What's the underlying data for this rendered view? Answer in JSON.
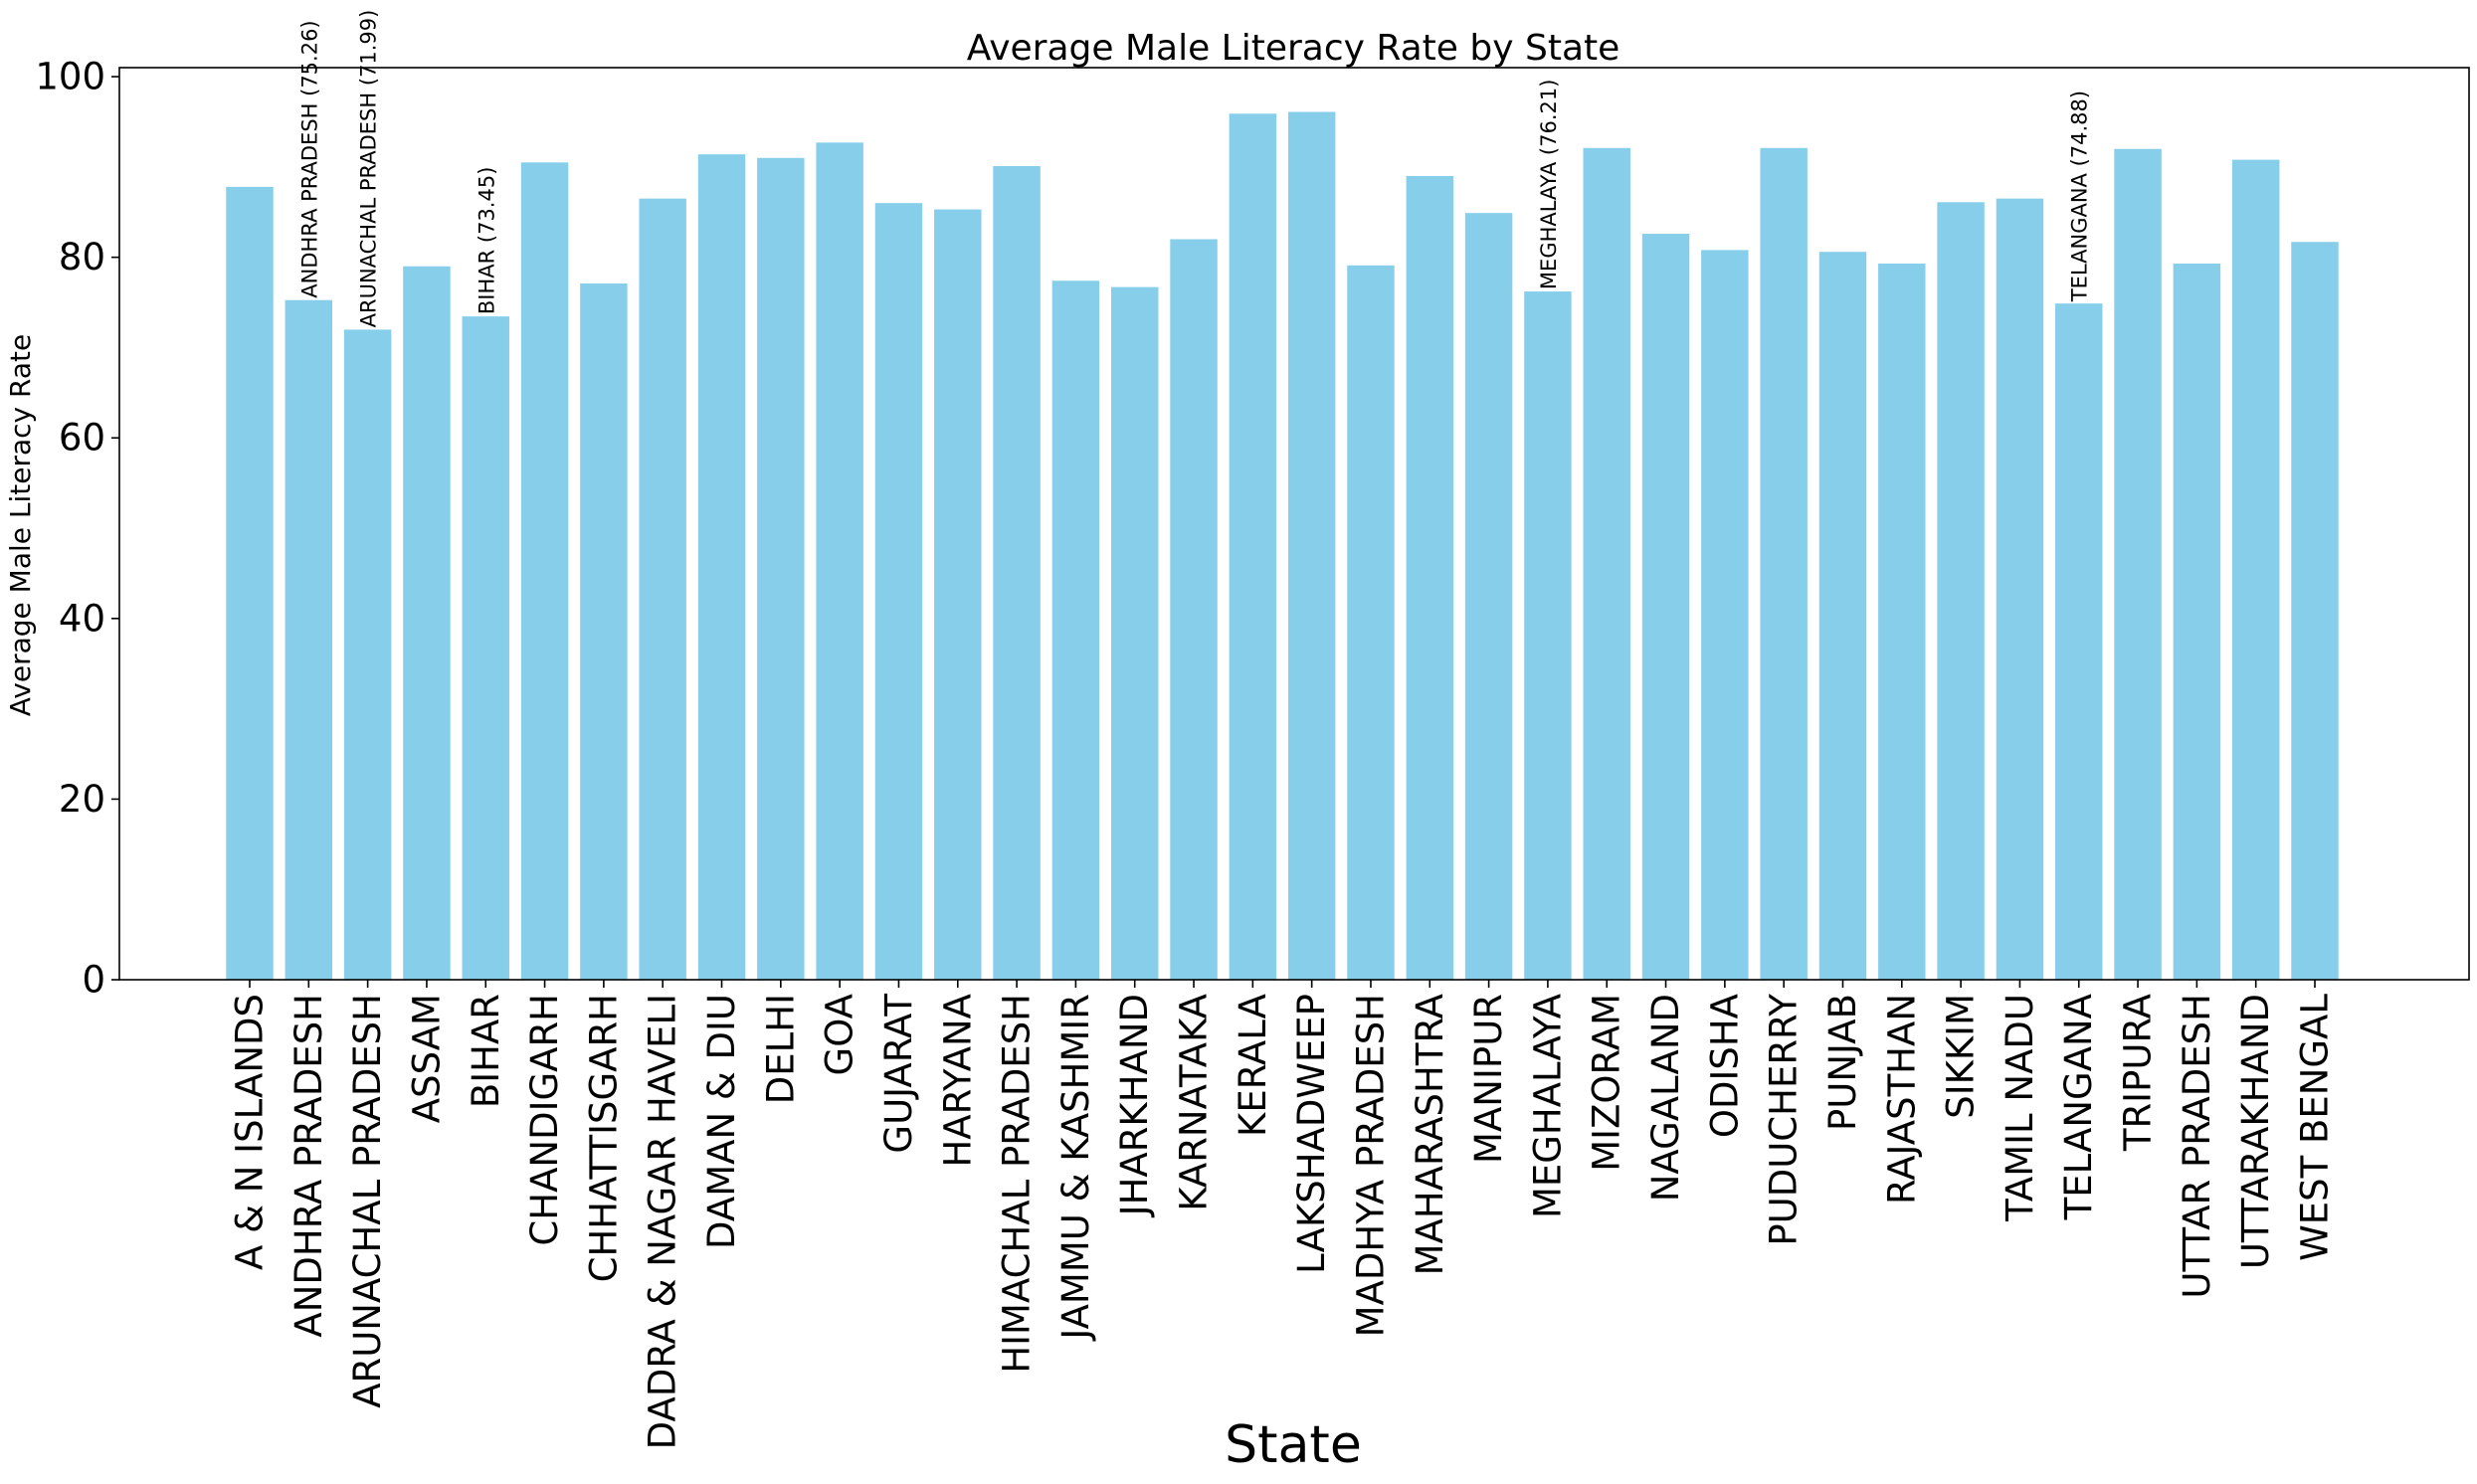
{
  "chart_data": {
    "type": "bar",
    "title": "Average Male Literacy Rate by State",
    "xlabel": "State",
    "ylabel": "Average Male Literacy Rate",
    "ylim": [
      0,
      101
    ],
    "yticks": [
      0,
      20,
      40,
      60,
      80,
      100
    ],
    "grid": false,
    "bar_color": "#87CEEB",
    "categories": [
      "A & N ISLANDS",
      "ANDHRA PRADESH",
      "ARUNACHAL PRADESH",
      "ASSAM",
      "BIHAR",
      "CHANDIGARH",
      "CHHATTISGARH",
      "DADRA & NAGAR HAVELI",
      "DAMAN & DIU",
      "DELHI",
      "GOA",
      "GUJARAT",
      "HARYANA",
      "HIMACHAL PRADESH",
      "JAMMU & KASHMIR",
      "JHARKHAND",
      "KARNATAKA",
      "KERALA",
      "LAKSHADWEEP",
      "MADHYA PRADESH",
      "MAHARASHTRA",
      "MANIPUR",
      "MEGHALAYA",
      "MIZORAM",
      "NAGALAND",
      "ODISHA",
      "PUDUCHERRY",
      "PUNJAB",
      "RAJASTHAN",
      "SIKKIM",
      "TAMIL NADU",
      "TELANGANA",
      "TRIPURA",
      "UTTAR PRADESH",
      "UTTARAKHAND",
      "WEST BENGAL"
    ],
    "values": [
      87.8,
      75.26,
      71.99,
      79.0,
      73.45,
      90.5,
      77.1,
      86.5,
      91.4,
      91.0,
      92.7,
      86.0,
      85.3,
      90.1,
      77.4,
      76.7,
      82.0,
      95.9,
      96.1,
      79.1,
      89.0,
      84.9,
      76.21,
      92.1,
      82.6,
      80.8,
      92.1,
      80.6,
      79.3,
      86.1,
      86.5,
      74.88,
      92.0,
      79.3,
      90.8,
      81.7
    ],
    "annotations": [
      {
        "category": "ANDHRA PRADESH",
        "text": "ANDHRA PRADESH (75.26)"
      },
      {
        "category": "ARUNACHAL PRADESH",
        "text": "ARUNACHAL PRADESH (71.99)"
      },
      {
        "category": "BIHAR",
        "text": "BIHAR (73.45)"
      },
      {
        "category": "MEGHALAYA",
        "text": "MEGHALAYA (76.21)"
      },
      {
        "category": "TELANGANA",
        "text": "TELANGANA (74.88)"
      }
    ]
  }
}
